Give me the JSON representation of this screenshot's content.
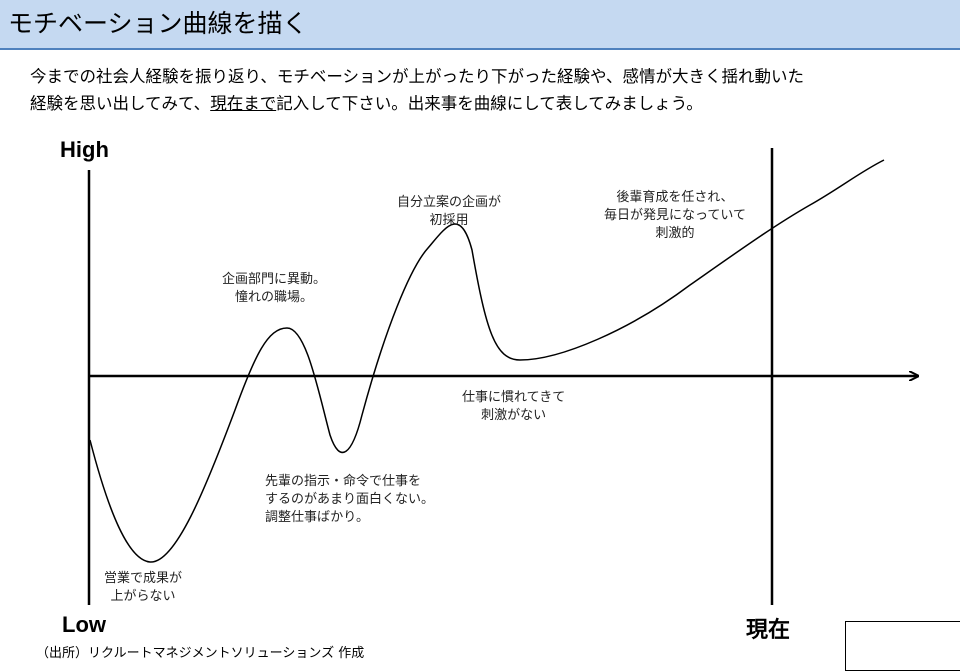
{
  "header": {
    "title": "モチベーション曲線を描く"
  },
  "instructions": {
    "line1": "今までの社会人経験を振り返り、モチベーションが上がったり下がった経験や、感情が大きく揺れ動いた",
    "line2_pre": "経験を思い出してみて、",
    "line2_underlined": "現在まで",
    "line2_post": "記入して下さい。出来事を曲線にして表してみましょう。"
  },
  "diagram": {
    "y_high_label": "High",
    "y_low_label": "Low",
    "now_label": "現在",
    "annotations": [
      {
        "lines": [
          "営業で成果が",
          "上がらない"
        ]
      },
      {
        "lines": [
          "企画部門に異動。",
          "憧れの職場。"
        ]
      },
      {
        "lines": [
          "先輩の指示・命令で仕事を",
          "するのがあまり面白くない。",
          "調整仕事ばかり。"
        ]
      },
      {
        "lines": [
          "自分立案の企画が",
          "初採用"
        ]
      },
      {
        "lines": [
          "仕事に慣れてきて",
          "刺激がない"
        ]
      },
      {
        "lines": [
          "後輩育成を任され、",
          "毎日が発見になっていて",
          "刺激的"
        ]
      }
    ]
  },
  "footer": {
    "source": "（出所）リクルートマネジメントソリューションズ 作成"
  }
}
